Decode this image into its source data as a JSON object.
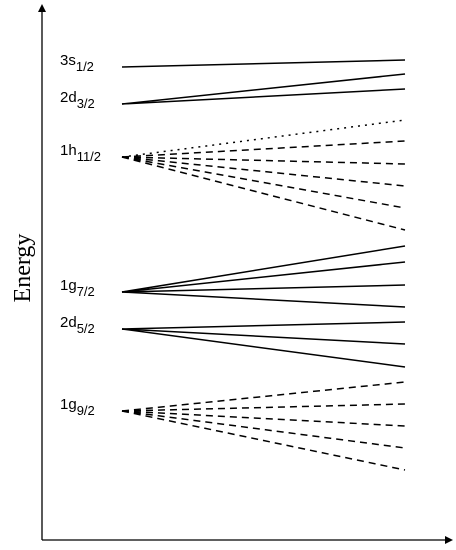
{
  "y_axis": {
    "label": "Energy"
  },
  "levels": [
    {
      "name": "3s",
      "subscript": "1/2"
    },
    {
      "name": "2d",
      "subscript": "3/2"
    },
    {
      "name": "1h",
      "subscript": "11/2"
    },
    {
      "name": "1g",
      "subscript": "7/2"
    },
    {
      "name": "2d",
      "subscript": "5/2"
    },
    {
      "name": "1g",
      "subscript": "9/2"
    }
  ]
}
